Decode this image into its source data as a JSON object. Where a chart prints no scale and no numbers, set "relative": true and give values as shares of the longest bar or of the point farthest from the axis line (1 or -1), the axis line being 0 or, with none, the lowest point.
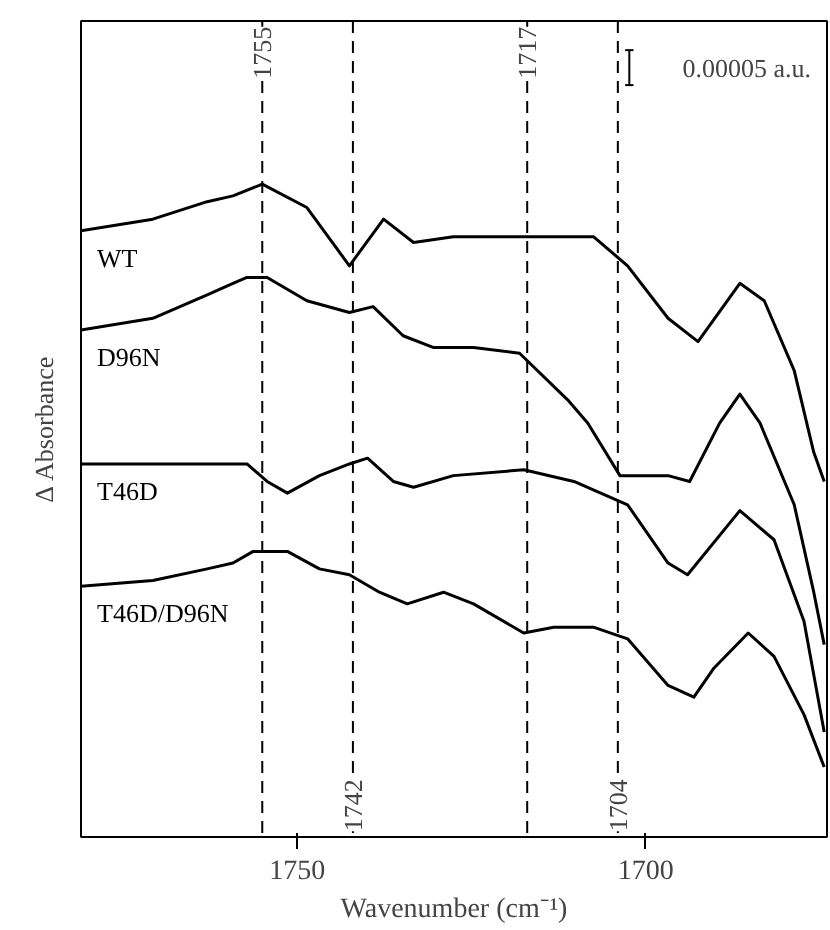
{
  "chart_data": {
    "type": "line",
    "relative": true,
    "xlabel": "Wavenumber (cm⁻¹)",
    "ylabel": "Δ Absorbance",
    "xlim": [
      1781,
      1674
    ],
    "xticks": [
      1750,
      1700
    ],
    "tick_labels": "x",
    "grid": false,
    "annotations": [
      "0.00005 a.u."
    ],
    "ref_lines": [
      {
        "axis": "x",
        "value": 1755,
        "label": "1755"
      },
      {
        "axis": "x",
        "value": 1742,
        "label": "1742"
      },
      {
        "axis": "x",
        "value": 1717,
        "label": "1717"
      },
      {
        "axis": "x",
        "value": 1704,
        "label": "1704"
      }
    ],
    "series": [
      {
        "name": "WT",
        "color": "#000000",
        "x": [
          1781,
          1770.7,
          1762.9,
          1759.2,
          1755,
          1748.6,
          1742.5,
          1737.6,
          1733.3,
          1727.6,
          1718.1,
          1707.5,
          1702.6,
          1696.8,
          1692.5,
          1686.5,
          1683.0,
          1678.7,
          1675.9,
          1674.4
        ],
        "values": [
          0.92,
          0.94,
          0.97,
          0.98,
          1.0,
          0.96,
          0.86,
          0.94,
          0.9,
          0.91,
          0.91,
          0.91,
          0.86,
          0.77,
          0.73,
          0.83,
          0.8,
          0.68,
          0.54,
          0.49
        ]
      },
      {
        "name": "D96N",
        "color": "#000000",
        "x": [
          1781,
          1770.7,
          1762.9,
          1759.2,
          1757.2,
          1754.3,
          1748.6,
          1742.5,
          1739.1,
          1734.8,
          1730.5,
          1724.7,
          1718.1,
          1711.2,
          1708.3,
          1703.7,
          1696.8,
          1693.7,
          1689.4,
          1686.5,
          1683.6,
          1678.7,
          1675.9,
          1674.4
        ],
        "values": [
          0.75,
          0.77,
          0.81,
          0.83,
          0.84,
          0.84,
          0.8,
          0.78,
          0.79,
          0.74,
          0.72,
          0.72,
          0.71,
          0.63,
          0.59,
          0.5,
          0.5,
          0.49,
          0.59,
          0.64,
          0.59,
          0.45,
          0.3,
          0.21
        ]
      },
      {
        "name": "T46D",
        "color": "#000000",
        "x": [
          1781,
          1757.2,
          1754.3,
          1751.4,
          1746.8,
          1742.5,
          1739.9,
          1736.2,
          1733.3,
          1727.6,
          1717.5,
          1710.3,
          1702.6,
          1696.8,
          1694.0,
          1686.5,
          1681.6,
          1677.3,
          1674.4
        ],
        "values": [
          0.52,
          0.52,
          0.49,
          0.47,
          0.5,
          0.52,
          0.53,
          0.49,
          0.48,
          0.5,
          0.51,
          0.49,
          0.45,
          0.35,
          0.33,
          0.44,
          0.39,
          0.25,
          0.06
        ]
      },
      {
        "name": "T46D/D96N",
        "color": "#000000",
        "x": [
          1781,
          1770.7,
          1762.9,
          1759.2,
          1756.3,
          1754.3,
          1751.4,
          1746.8,
          1742.5,
          1738.2,
          1734.2,
          1729.0,
          1724.7,
          1717.5,
          1713.2,
          1707.5,
          1702.6,
          1696.8,
          1693.1,
          1690.2,
          1685.3,
          1681.6,
          1677.3,
          1674.4
        ],
        "values": [
          0.31,
          0.32,
          0.34,
          0.35,
          0.37,
          0.37,
          0.37,
          0.34,
          0.33,
          0.3,
          0.28,
          0.3,
          0.28,
          0.23,
          0.24,
          0.24,
          0.22,
          0.14,
          0.12,
          0.17,
          0.23,
          0.19,
          0.09,
          0.0
        ]
      }
    ]
  }
}
